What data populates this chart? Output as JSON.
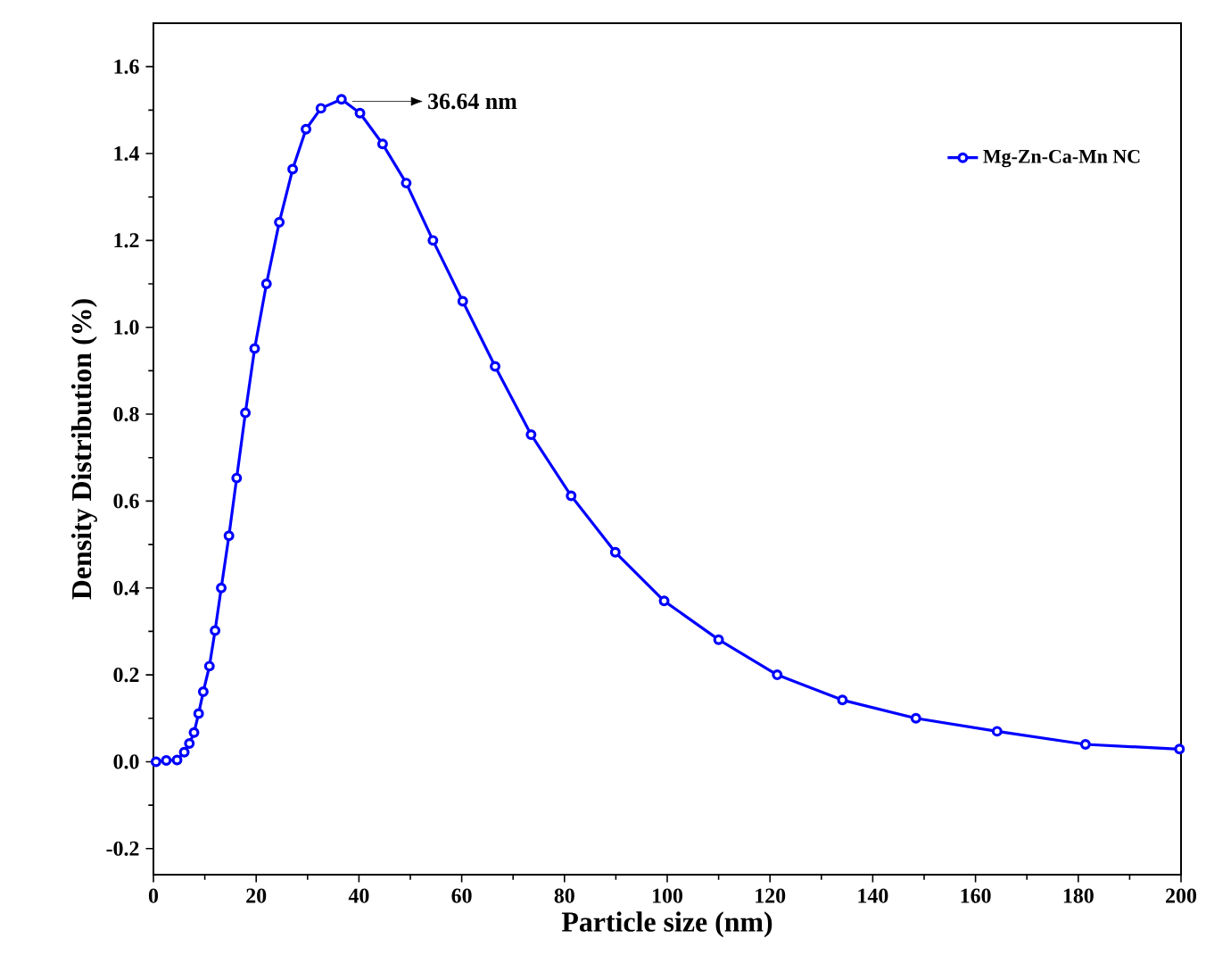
{
  "chart_data": {
    "type": "line",
    "xlabel": "Particle size (nm)",
    "ylabel": "Density Distribution (%)",
    "xlim": [
      0,
      200
    ],
    "ylim": [
      -0.26,
      1.7
    ],
    "xticks": [
      0,
      20,
      40,
      60,
      80,
      100,
      120,
      140,
      160,
      180,
      200
    ],
    "yticks": [
      -0.2,
      {
        "value": 0,
        "label": "0.0"
      },
      0.2,
      0.4,
      0.6,
      0.8,
      {
        "value": 1,
        "label": "1.0"
      },
      1.2,
      1.4,
      1.6
    ],
    "legend": "top right",
    "marker": "circle",
    "line_style": "solid",
    "grid": false,
    "annotations": [
      {
        "text": "36.64 nm",
        "x": 36.64,
        "y": 1.52
      }
    ],
    "series": [
      {
        "name": "Mg-Zn-Ca-Mn NC",
        "color": "#0000ff",
        "x": [
          0.5,
          2.5,
          4.6,
          6.0,
          7.0,
          7.9,
          8.8,
          9.7,
          10.9,
          12.0,
          13.2,
          14.7,
          16.2,
          17.9,
          19.7,
          22.0,
          24.5,
          27.1,
          29.7,
          32.6,
          36.6,
          40.2,
          44.6,
          49.2,
          54.4,
          60.2,
          66.5,
          73.5,
          81.3,
          89.9,
          99.4,
          110.0,
          121.4,
          134.1,
          148.4,
          164.2,
          181.4,
          199.7
        ],
        "values": [
          0.0,
          0.003,
          0.004,
          0.022,
          0.042,
          0.067,
          0.111,
          0.161,
          0.22,
          0.302,
          0.4,
          0.52,
          0.653,
          0.803,
          0.951,
          1.1,
          1.242,
          1.364,
          1.456,
          1.504,
          1.525,
          1.493,
          1.422,
          1.332,
          1.2,
          1.06,
          0.91,
          0.753,
          0.612,
          0.482,
          0.37,
          0.281,
          0.2,
          0.142,
          0.1,
          0.07,
          0.04,
          0.029
        ]
      }
    ]
  }
}
